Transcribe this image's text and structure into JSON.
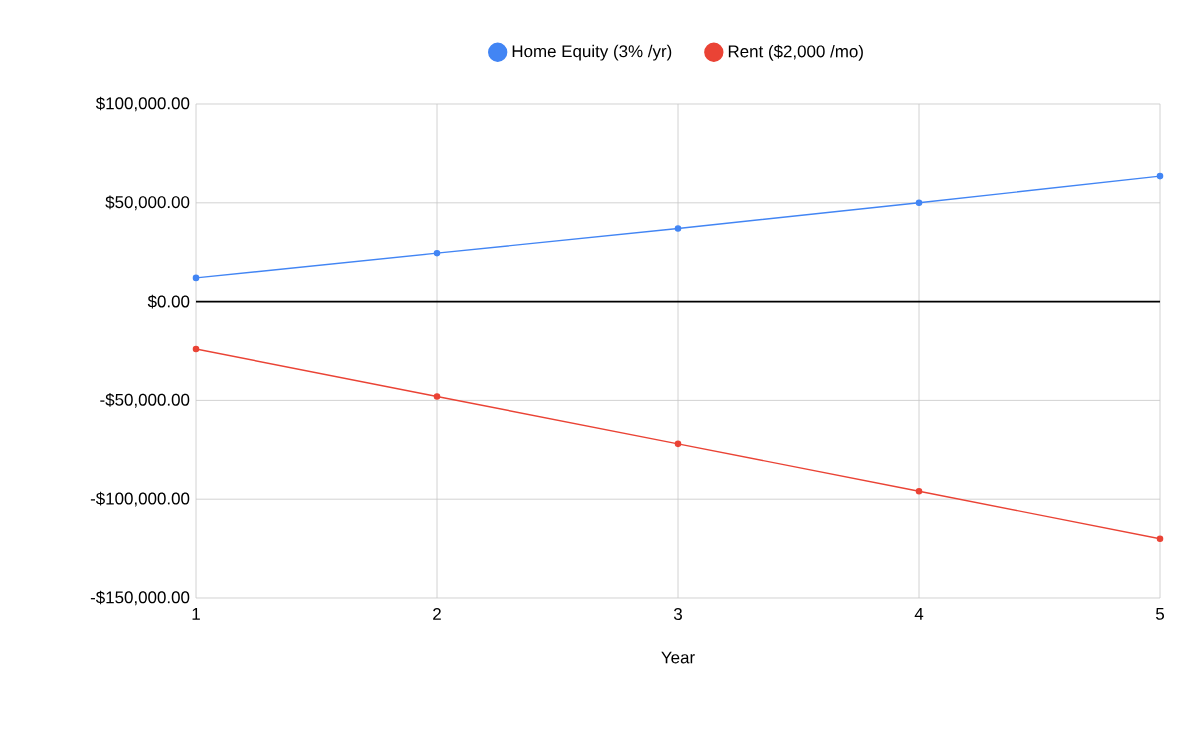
{
  "chart_data": {
    "type": "line",
    "xlabel": "Year",
    "x": [
      1,
      2,
      3,
      4,
      5
    ],
    "series": [
      {
        "name": "Home Equity (3% /yr)",
        "color": "#4285f4",
        "values": [
          12000,
          24500,
          37000,
          50000,
          63500
        ]
      },
      {
        "name": "Rent ($2,000 /mo)",
        "color": "#ea4335",
        "values": [
          -24000,
          -48000,
          -72000,
          -96000,
          -120000
        ]
      }
    ],
    "xlim": [
      1,
      5
    ],
    "xticks": [
      1,
      2,
      3,
      4,
      5
    ],
    "ylim": [
      -150000,
      100000
    ],
    "yticks": [
      {
        "value": -150000,
        "label": "-$150,000.00"
      },
      {
        "value": -100000,
        "label": "-$100,000.00"
      },
      {
        "value": -50000,
        "label": "-$50,000.00"
      },
      {
        "value": 0,
        "label": "$0.00"
      },
      {
        "value": 50000,
        "label": "$50,000.00"
      },
      {
        "value": 100000,
        "label": "$100,000.00"
      }
    ],
    "grid": true,
    "legend": "top",
    "marker": "circle",
    "line_style": "solid"
  }
}
